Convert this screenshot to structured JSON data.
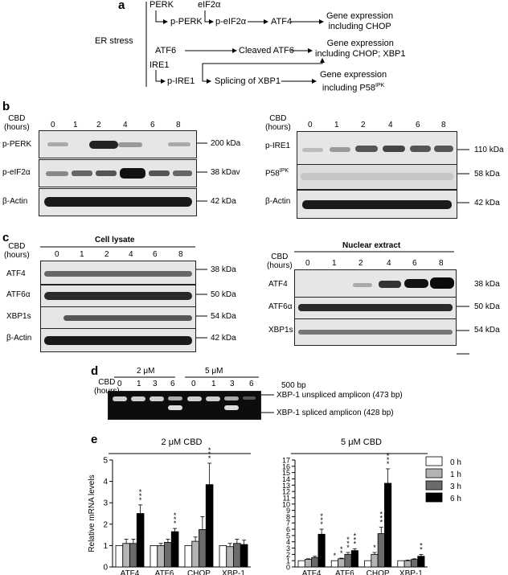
{
  "panels": {
    "a": "a",
    "b": "b",
    "c": "c",
    "d": "d",
    "e": "e"
  },
  "a": {
    "er_stress": "ER stress",
    "perk": "PERK",
    "p_perk": "p-PERK",
    "eif2a": "eIF2α",
    "p_eif2a": "p-eIF2α",
    "atf4": "ATF4",
    "gene1_l1": "Gene expression",
    "gene1_l2": "including CHOP",
    "atf6": "ATF6",
    "cleaved_atf6": "Cleaved ATF6",
    "gene2_l1": "Gene expression",
    "gene2_l2": "including CHOP; XBP1",
    "ire1": "IRE1",
    "p_ire1": "p-IRE1",
    "splicing": "Splicing of XBP1",
    "gene3_l1": "Gene expression",
    "gene3_l2": "including P58",
    "gene3_sup": "IPK"
  },
  "b": {
    "cbd_l1": "CBD",
    "cbd_l2": "(hours)",
    "times": [
      "0",
      "1",
      "2",
      "4",
      "6",
      "8"
    ],
    "left_rows": [
      "p-PERK",
      "p-eIF2α",
      "β-Actin"
    ],
    "left_kda": [
      "200 kDa",
      "38 kDav",
      "42 kDa"
    ],
    "right_rows": [
      "p-IRE1",
      "P58",
      "β-Actin"
    ],
    "right_sup": "IPK",
    "right_kda": [
      "110 kDa",
      "58 kDa",
      "42 kDa"
    ]
  },
  "c": {
    "cbd_l1": "CBD",
    "cbd_l2": "(hours)",
    "times": [
      "0",
      "1",
      "2",
      "4",
      "6",
      "8"
    ],
    "cell_lysate": "Cell lysate",
    "nuclear_extract": "Nuclear extract",
    "left_rows": [
      "ATF4",
      "ATF6α",
      "XBP1s",
      "β-Actin"
    ],
    "left_kda": [
      "38 kDa",
      "50 kDa",
      "54 kDa",
      "42 kDa"
    ],
    "right_rows": [
      "ATF4",
      "ATF6α",
      "XBP1s"
    ],
    "right_kda": [
      "38 kDa",
      "50 kDa",
      "54 kDa"
    ]
  },
  "d": {
    "cbd_l1": "CBD",
    "cbd_l2": "(hours)",
    "conc1": "2 μM",
    "conc2": "5 μM",
    "times": [
      "0",
      "1",
      "3",
      "6",
      "0",
      "1",
      "3",
      "6"
    ],
    "bp500": "500 bp",
    "unspliced": "XBP-1 unspliced amplicon (473 bp)",
    "spliced": "XBP-1 spliced amplicon (428 bp)"
  },
  "chart_data": [
    {
      "type": "bar",
      "title": "2 μM CBD",
      "ylabel": "Relative mRNA levels",
      "categories": [
        "ATF4",
        "ATF6",
        "CHOP",
        "XBP-1"
      ],
      "ylim": [
        0,
        5
      ],
      "yticks": [
        "0",
        "1",
        "2",
        "3",
        "4",
        "5"
      ],
      "series": [
        {
          "name": "0 h",
          "color": "#ffffff",
          "values": [
            1.0,
            1.0,
            1.0,
            1.0
          ]
        },
        {
          "name": "1 h",
          "color": "#b3b3b3",
          "values": [
            1.1,
            1.0,
            1.2,
            0.95
          ]
        },
        {
          "name": "3 h",
          "color": "#6b6b6b",
          "values": [
            1.1,
            1.15,
            1.75,
            1.1
          ]
        },
        {
          "name": "6 h",
          "color": "#000000",
          "values": [
            2.5,
            1.65,
            3.85,
            1.05
          ]
        }
      ],
      "errors": [
        [
          0,
          0,
          0,
          0
        ],
        [
          0.2,
          0.1,
          0.2,
          0.15
        ],
        [
          0.2,
          0.15,
          0.6,
          0.2
        ],
        [
          0.4,
          0.15,
          1.0,
          0.2
        ]
      ],
      "annotations": [
        [
          "",
          "",
          "",
          ""
        ],
        [
          "",
          "",
          "",
          ""
        ],
        [
          "",
          "",
          "",
          ""
        ],
        [
          "***",
          "***",
          "***",
          ""
        ]
      ]
    },
    {
      "type": "bar",
      "title": "5 μM CBD",
      "ylabel": "",
      "categories": [
        "ATF4",
        "ATF6",
        "CHOP",
        "XBP-1"
      ],
      "ylim": [
        0,
        17
      ],
      "yticks": [
        "0",
        "1",
        "2",
        "3",
        "4",
        "5",
        "6",
        "7",
        "8",
        "9",
        "10",
        "11",
        "12",
        "13",
        "14",
        "15",
        "16",
        "17"
      ],
      "series": [
        {
          "name": "0 h",
          "color": "#ffffff",
          "values": [
            1.0,
            1.0,
            1.0,
            1.0
          ]
        },
        {
          "name": "1 h",
          "color": "#b3b3b3",
          "values": [
            1.2,
            1.3,
            2.0,
            1.0
          ]
        },
        {
          "name": "3 h",
          "color": "#6b6b6b",
          "values": [
            1.5,
            2.0,
            5.3,
            1.2
          ]
        },
        {
          "name": "6 h",
          "color": "#000000",
          "values": [
            5.2,
            2.6,
            13.3,
            1.7
          ]
        }
      ],
      "errors": [
        [
          0,
          0,
          0,
          0
        ],
        [
          0.1,
          0.1,
          0.3,
          0.1
        ],
        [
          0.2,
          0.3,
          1.0,
          0.1
        ],
        [
          0.8,
          0.3,
          2.3,
          0.3
        ]
      ],
      "annotations": [
        [
          "",
          "*",
          "",
          ""
        ],
        [
          "",
          "**",
          "*",
          ""
        ],
        [
          "",
          "***",
          "***",
          ""
        ],
        [
          "***",
          "***",
          "***",
          "**"
        ]
      ],
      "legend": "top-right"
    }
  ]
}
